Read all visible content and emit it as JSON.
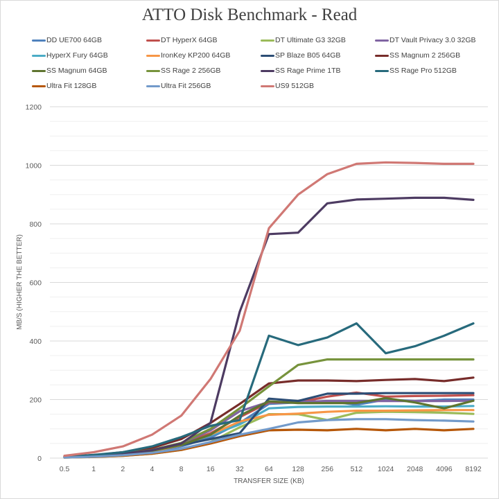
{
  "chart_data": {
    "type": "line",
    "title": "ATTO Disk Benchmark - Read",
    "xlabel": "TRANSFER SIZE (KB)",
    "ylabel": "MB/S (HIGHER THE BETTER)",
    "ylim": [
      0,
      1200
    ],
    "yticks": [
      "0",
      "200",
      "400",
      "600",
      "800",
      "1000",
      "1200"
    ],
    "ytick_values": [
      0,
      200,
      400,
      600,
      800,
      1000,
      1200
    ],
    "y_minor_step": 50,
    "grid": true,
    "legend_position": "top",
    "categories": [
      "0.5",
      "1",
      "2",
      "4",
      "8",
      "16",
      "32",
      "64",
      "128",
      "256",
      "512",
      "1024",
      "2048",
      "4096",
      "8192"
    ],
    "series": [
      {
        "name": "DD UE700 64GB",
        "color": "#4f81bd",
        "values": [
          3,
          6,
          12,
          22,
          40,
          70,
          120,
          185,
          190,
          195,
          182,
          200,
          195,
          200,
          200
        ]
      },
      {
        "name": "DT HyperX 64GB",
        "color": "#c0504d",
        "values": [
          3,
          7,
          14,
          26,
          48,
          85,
          140,
          190,
          190,
          210,
          224,
          210,
          212,
          213,
          215
        ]
      },
      {
        "name": "DT Ultimate G3 32GB",
        "color": "#9bbb59",
        "values": [
          2,
          4,
          8,
          15,
          28,
          55,
          105,
          150,
          150,
          130,
          155,
          158,
          157,
          155,
          151
        ]
      },
      {
        "name": "DT Vault Privacy 3.0 32GB",
        "color": "#8064a2",
        "values": [
          3,
          7,
          14,
          27,
          50,
          95,
          160,
          192,
          192,
          195,
          195,
          195,
          195,
          195,
          196
        ]
      },
      {
        "name": "HyperX Fury 64GB",
        "color": "#4bacc6",
        "values": [
          3,
          6,
          13,
          24,
          44,
          78,
          115,
          170,
          175,
          176,
          176,
          177,
          176,
          176,
          178
        ]
      },
      {
        "name": "IronKey KP200 64GB",
        "color": "#f79646",
        "values": [
          3,
          6,
          12,
          23,
          44,
          80,
          125,
          148,
          152,
          158,
          162,
          162,
          163,
          164,
          164
        ]
      },
      {
        "name": "SP Blaze B05 64GB",
        "color": "#2c4d75",
        "values": [
          4,
          8,
          16,
          28,
          45,
          65,
          85,
          203,
          195,
          220,
          220,
          222,
          222,
          222,
          222
        ]
      },
      {
        "name": "SS Magnum 2 256GB",
        "color": "#772c2a",
        "values": [
          5,
          10,
          20,
          35,
          65,
          120,
          185,
          255,
          265,
          265,
          263,
          267,
          270,
          263,
          275
        ]
      },
      {
        "name": "SS Magnum 64GB",
        "color": "#5f7530",
        "values": [
          3,
          7,
          14,
          25,
          45,
          80,
          145,
          194,
          188,
          188,
          188,
          205,
          190,
          170,
          196
        ]
      },
      {
        "name": "SS Rage 2 256GB",
        "color": "#77933c",
        "values": [
          4,
          8,
          16,
          28,
          52,
          100,
          170,
          245,
          318,
          337,
          337,
          337,
          337,
          337,
          337
        ]
      },
      {
        "name": "SS Rage Prime 1TB",
        "color": "#4d3b62",
        "values": [
          4,
          8,
          15,
          27,
          50,
          120,
          500,
          765,
          770,
          870,
          883,
          886,
          889,
          889,
          882
        ]
      },
      {
        "name": "SS Rage Pro 512GB",
        "color": "#276a7c",
        "values": [
          5,
          11,
          20,
          40,
          72,
          110,
          130,
          418,
          386,
          412,
          460,
          358,
          382,
          418,
          460
        ]
      },
      {
        "name": "Ultra Fit 128GB",
        "color": "#b65708",
        "values": [
          2,
          4,
          8,
          15,
          28,
          50,
          75,
          95,
          97,
          95,
          100,
          95,
          100,
          95,
          100
        ]
      },
      {
        "name": "Ultra Fit 256GB",
        "color": "#729aca",
        "values": [
          2,
          5,
          10,
          18,
          32,
          55,
          80,
          100,
          122,
          130,
          133,
          133,
          130,
          128,
          125
        ]
      },
      {
        "name": "US9 512GB",
        "color": "#d07874",
        "values": [
          8,
          20,
          40,
          80,
          145,
          270,
          435,
          785,
          900,
          970,
          1005,
          1010,
          1008,
          1005,
          1005
        ]
      }
    ]
  }
}
